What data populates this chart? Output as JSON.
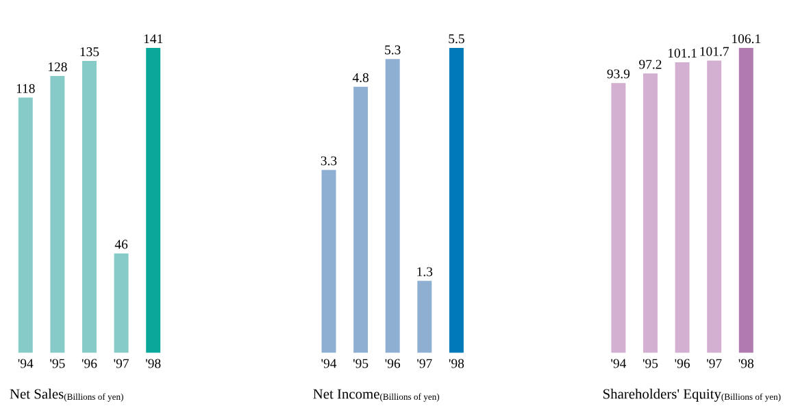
{
  "chart_data": [
    {
      "type": "bar",
      "title": "Net Sales",
      "subtitle": "(Billions of yen)",
      "categories": [
        "'94",
        "'95",
        "'96",
        "'97",
        "'98"
      ],
      "values": [
        118,
        128,
        135,
        46,
        141
      ],
      "colors": [
        "#86cbc7",
        "#86cbc7",
        "#86cbc7",
        "#86cbc7",
        "#0aa79b"
      ],
      "data_labels": true
    },
    {
      "type": "bar",
      "title": "Net Income",
      "subtitle": "(Billions of yen)",
      "categories": [
        "'94",
        "'95",
        "'96",
        "'97",
        "'98"
      ],
      "values": [
        3.3,
        4.8,
        5.3,
        1.3,
        5.5
      ],
      "colors": [
        "#8fafd2",
        "#8fafd2",
        "#8fafd2",
        "#8fafd2",
        "#0079b8"
      ],
      "data_labels": true
    },
    {
      "type": "bar",
      "title": "Shareholders' Equity",
      "subtitle": "(Billions of yen)",
      "categories": [
        "'94",
        "'95",
        "'96",
        "'97",
        "'98"
      ],
      "values": [
        93.9,
        97.2,
        101.1,
        101.7,
        106.1
      ],
      "colors": [
        "#d3b0d1",
        "#d3b0d1",
        "#d3b0d1",
        "#d3b0d1",
        "#b07cb0"
      ],
      "data_labels": true
    }
  ]
}
